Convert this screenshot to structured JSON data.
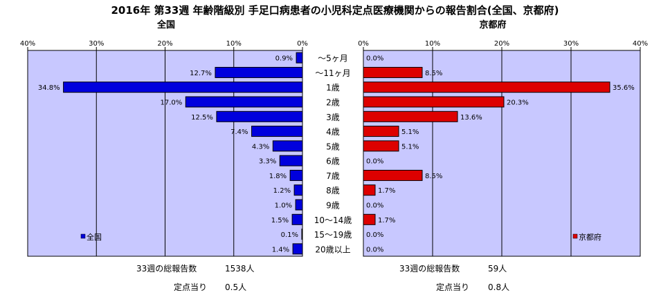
{
  "title": "2016年 第33週 年齢階級別 手足口病患者の小児科定点医療機関からの報告割合(全国、京都府)",
  "colors": {
    "plot_bg": "#c8c8ff",
    "national_bar": "#0000dd",
    "kyoto_bar": "#dd0000",
    "grid": "#000000"
  },
  "chart_data": [
    {
      "type": "bar",
      "orientation": "horizontal",
      "direction": "right-to-left",
      "title": "全国",
      "xlim": [
        0,
        40
      ],
      "ticks": [
        "0%",
        "10%",
        "20%",
        "30%",
        "40%"
      ],
      "legend": "全国",
      "legend_position": "bottom-left",
      "categories": [
        "～5ヶ月",
        "～11ヶ月",
        "1歳",
        "2歳",
        "3歳",
        "4歳",
        "5歳",
        "6歳",
        "7歳",
        "8歳",
        "9歳",
        "10～14歳",
        "15～19歳",
        "20歳以上"
      ],
      "values": [
        0.9,
        12.7,
        34.8,
        17.0,
        12.5,
        7.4,
        4.3,
        3.3,
        1.8,
        1.2,
        1.0,
        1.5,
        0.1,
        1.4
      ],
      "value_labels": [
        "0.9%",
        "12.7%",
        "34.8%",
        "17.0%",
        "12.5%",
        "7.4%",
        "4.3%",
        "3.3%",
        "1.8%",
        "1.2%",
        "1.0%",
        "1.5%",
        "0.1%",
        "1.4%"
      ]
    },
    {
      "type": "bar",
      "orientation": "horizontal",
      "direction": "left-to-right",
      "title": "京都府",
      "xlim": [
        0,
        40
      ],
      "ticks": [
        "0%",
        "10%",
        "20%",
        "30%",
        "40%"
      ],
      "legend": "京都府",
      "legend_position": "bottom-right",
      "categories": [
        "～5ヶ月",
        "～11ヶ月",
        "1歳",
        "2歳",
        "3歳",
        "4歳",
        "5歳",
        "6歳",
        "7歳",
        "8歳",
        "9歳",
        "10～14歳",
        "15～19歳",
        "20歳以上"
      ],
      "values": [
        0.0,
        8.5,
        35.6,
        20.3,
        13.6,
        5.1,
        5.1,
        0.0,
        8.5,
        1.7,
        0.0,
        1.7,
        0.0,
        0.0
      ],
      "value_labels": [
        "0.0%",
        "8.5%",
        "35.6%",
        "20.3%",
        "13.6%",
        "5.1%",
        "5.1%",
        "0.0%",
        "8.5%",
        "1.7%",
        "0.0%",
        "1.7%",
        "0.0%",
        "0.0%"
      ]
    }
  ],
  "footer": {
    "national": {
      "total_label": "33週の総報告数",
      "total_value": "1538人",
      "per_label": "定点当り",
      "per_value": "0.5人"
    },
    "kyoto": {
      "total_label": "33週の総報告数",
      "total_value": "59人",
      "per_label": "定点当り",
      "per_value": "0.8人"
    }
  }
}
